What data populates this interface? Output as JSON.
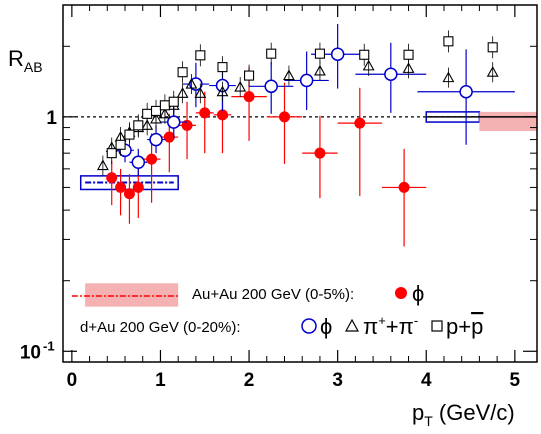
{
  "chart_data": {
    "type": "scatter",
    "xlabel_main": "p",
    "xlabel_sub": "T",
    "xlabel_unit": " (GeV/c)",
    "ylabel_main": "R",
    "ylabel_sub": "AB",
    "xlim": [
      -0.1,
      5.25
    ],
    "ylim": [
      0.09,
      3.0
    ],
    "yscale": "log",
    "reference_line": 1,
    "x_ticks": [
      {
        "value": 0,
        "label": "0"
      },
      {
        "value": 1,
        "label": "1"
      },
      {
        "value": 2,
        "label": "2"
      },
      {
        "value": 3,
        "label": "3"
      },
      {
        "value": 4,
        "label": "4"
      },
      {
        "value": 5,
        "label": "5"
      }
    ],
    "y_ticks": [
      {
        "value": 1,
        "label": "1",
        "sup": ""
      },
      {
        "value": 0.1,
        "label": "10",
        "sup": "-1"
      }
    ],
    "legend": {
      "auau_label": "Au+Au 200 GeV (0-5%):",
      "auau_symbol": "ϕ",
      "dau_label": "d+Au 200 GeV (0-20%):",
      "dau_phi_symbol": "ϕ",
      "dau_pion_main": "π",
      "dau_pion_sup1": "+",
      "dau_pion_mid": "+π",
      "dau_pion_sup2": "-",
      "dau_proton_main": "p+",
      "dau_proton_bar": "p"
    },
    "colors": {
      "auau_phi": "#ff0000",
      "dau_phi": "#0000cc",
      "systematic_band": "#f4b2b2",
      "systematic_box_outline": "#0000cc"
    },
    "series": [
      {
        "name": "Au+Au 200 GeV (0-5%) ϕ",
        "marker": "filled-circle",
        "points": [
          {
            "x": 0.45,
            "y": 0.55,
            "xerr": 0.05,
            "yerr_lo": 0.13,
            "yerr_hi": 0.1
          },
          {
            "x": 0.55,
            "y": 0.5,
            "xerr": 0.05,
            "yerr_lo": 0.12,
            "yerr_hi": 0.1
          },
          {
            "x": 0.65,
            "y": 0.47,
            "xerr": 0.05,
            "yerr_lo": 0.12,
            "yerr_hi": 0.1
          },
          {
            "x": 0.75,
            "y": 0.5,
            "xerr": 0.05,
            "yerr_lo": 0.13,
            "yerr_hi": 0.11
          },
          {
            "x": 0.9,
            "y": 0.66,
            "xerr": 0.1,
            "yerr_lo": 0.23,
            "yerr_hi": 0.19
          },
          {
            "x": 1.1,
            "y": 0.82,
            "xerr": 0.1,
            "yerr_lo": 0.24,
            "yerr_hi": 0.21
          },
          {
            "x": 1.3,
            "y": 0.92,
            "xerr": 0.1,
            "yerr_lo": 0.26,
            "yerr_hi": 0.24
          },
          {
            "x": 1.5,
            "y": 1.04,
            "xerr": 0.1,
            "yerr_lo": 0.34,
            "yerr_hi": 0.24
          },
          {
            "x": 1.7,
            "y": 1.02,
            "xerr": 0.1,
            "yerr_lo": 0.32,
            "yerr_hi": 0.28
          },
          {
            "x": 2.0,
            "y": 1.22,
            "xerr": 0.2,
            "yerr_lo": 0.43,
            "yerr_hi": 0.41
          },
          {
            "x": 2.4,
            "y": 1.0,
            "xerr": 0.2,
            "yerr_lo": 0.37,
            "yerr_hi": 0.4
          },
          {
            "x": 2.8,
            "y": 0.7,
            "xerr": 0.2,
            "yerr_lo": 0.25,
            "yerr_hi": 0.31
          },
          {
            "x": 3.25,
            "y": 0.94,
            "xerr": 0.25,
            "yerr_lo": 0.48,
            "yerr_hi": 0.39
          },
          {
            "x": 3.75,
            "y": 0.5,
            "xerr": 0.25,
            "yerr_lo": 0.22,
            "yerr_hi": 0.23
          }
        ]
      },
      {
        "name": "d+Au 200 GeV (0-20%) ϕ",
        "marker": "open-circle",
        "points": [
          {
            "x": 0.6,
            "y": 0.72,
            "xerr": 0.1,
            "yerr_lo": 0.08,
            "yerr_hi": 0.08
          },
          {
            "x": 0.75,
            "y": 0.64,
            "xerr": 0.1,
            "yerr_lo": 0.08,
            "yerr_hi": 0.09
          },
          {
            "x": 0.95,
            "y": 0.8,
            "xerr": 0.1,
            "yerr_lo": 0.1,
            "yerr_hi": 0.12
          },
          {
            "x": 1.15,
            "y": 0.95,
            "xerr": 0.15,
            "yerr_lo": 0.14,
            "yerr_hi": 0.16
          },
          {
            "x": 1.4,
            "y": 1.38,
            "xerr": 0.15,
            "yerr_lo": 0.28,
            "yerr_hi": 0.32
          },
          {
            "x": 1.7,
            "y": 1.36,
            "xerr": 0.15,
            "yerr_lo": 0.3,
            "yerr_hi": 0.32
          },
          {
            "x": 2.25,
            "y": 1.35,
            "xerr": 0.25,
            "yerr_lo": 0.32,
            "yerr_hi": 0.36
          },
          {
            "x": 2.65,
            "y": 1.43,
            "xerr": 0.25,
            "yerr_lo": 0.36,
            "yerr_hi": 0.47
          },
          {
            "x": 3.0,
            "y": 1.85,
            "xerr": 0.3,
            "yerr_lo": 0.53,
            "yerr_hi": 0.64
          },
          {
            "x": 3.6,
            "y": 1.52,
            "xerr": 0.4,
            "yerr_lo": 0.48,
            "yerr_hi": 0.55
          },
          {
            "x": 4.45,
            "y": 1.28,
            "xerr": 0.55,
            "yerr_lo": 0.52,
            "yerr_hi": 0.66
          }
        ]
      },
      {
        "name": "d+Au 200 GeV (0-20%) π⁺+π⁻",
        "marker": "open-triangle",
        "points": [
          {
            "x": 0.35,
            "y": 0.62
          },
          {
            "x": 0.45,
            "y": 0.74
          },
          {
            "x": 0.55,
            "y": 0.82
          },
          {
            "x": 0.65,
            "y": 0.86
          },
          {
            "x": 0.75,
            "y": 0.9
          },
          {
            "x": 0.85,
            "y": 0.92
          },
          {
            "x": 0.95,
            "y": 0.98
          },
          {
            "x": 1.05,
            "y": 1.03
          },
          {
            "x": 1.15,
            "y": 1.12
          },
          {
            "x": 1.25,
            "y": 1.26
          },
          {
            "x": 1.35,
            "y": 1.38
          },
          {
            "x": 1.45,
            "y": 1.26
          },
          {
            "x": 1.7,
            "y": 1.28
          },
          {
            "x": 1.9,
            "y": 1.34
          },
          {
            "x": 2.45,
            "y": 1.5
          },
          {
            "x": 2.8,
            "y": 1.57
          },
          {
            "x": 3.35,
            "y": 1.65
          },
          {
            "x": 3.8,
            "y": 1.61
          },
          {
            "x": 4.25,
            "y": 1.47
          },
          {
            "x": 4.75,
            "y": 1.55
          }
        ]
      },
      {
        "name": "d+Au 200 GeV (0-20%) p+p̄",
        "marker": "open-square",
        "points": [
          {
            "x": 0.45,
            "y": 0.7
          },
          {
            "x": 0.55,
            "y": 0.76
          },
          {
            "x": 0.65,
            "y": 0.84
          },
          {
            "x": 0.75,
            "y": 0.92
          },
          {
            "x": 0.85,
            "y": 1.03
          },
          {
            "x": 0.95,
            "y": 1.06
          },
          {
            "x": 1.05,
            "y": 1.12
          },
          {
            "x": 1.15,
            "y": 1.16
          },
          {
            "x": 1.25,
            "y": 1.55
          },
          {
            "x": 1.45,
            "y": 1.83
          },
          {
            "x": 1.7,
            "y": 1.63
          },
          {
            "x": 2.0,
            "y": 1.5
          },
          {
            "x": 2.25,
            "y": 1.86
          },
          {
            "x": 2.8,
            "y": 1.86
          },
          {
            "x": 3.3,
            "y": 1.84
          },
          {
            "x": 3.8,
            "y": 1.84
          },
          {
            "x": 4.25,
            "y": 2.1
          },
          {
            "x": 4.75,
            "y": 1.98
          }
        ]
      }
    ],
    "systematic_boxes": [
      {
        "series": "d+Au ϕ",
        "x_min": 0.1,
        "x_max": 1.2,
        "y_min": 0.49,
        "y_max": 0.56,
        "style": "outline"
      },
      {
        "series": "d+Au ϕ",
        "x_min": 4.0,
        "x_max": 4.6,
        "y_min": 0.95,
        "y_max": 1.05,
        "style": "outline"
      },
      {
        "series": "Au+Au ϕ",
        "x_min": 4.6,
        "x_max": 5.25,
        "y_min": 0.87,
        "y_max": 1.05,
        "style": "filled"
      }
    ],
    "low_pt_reference": {
      "x_min": 0.15,
      "x_max": 1.15,
      "y": 0.525
    }
  }
}
